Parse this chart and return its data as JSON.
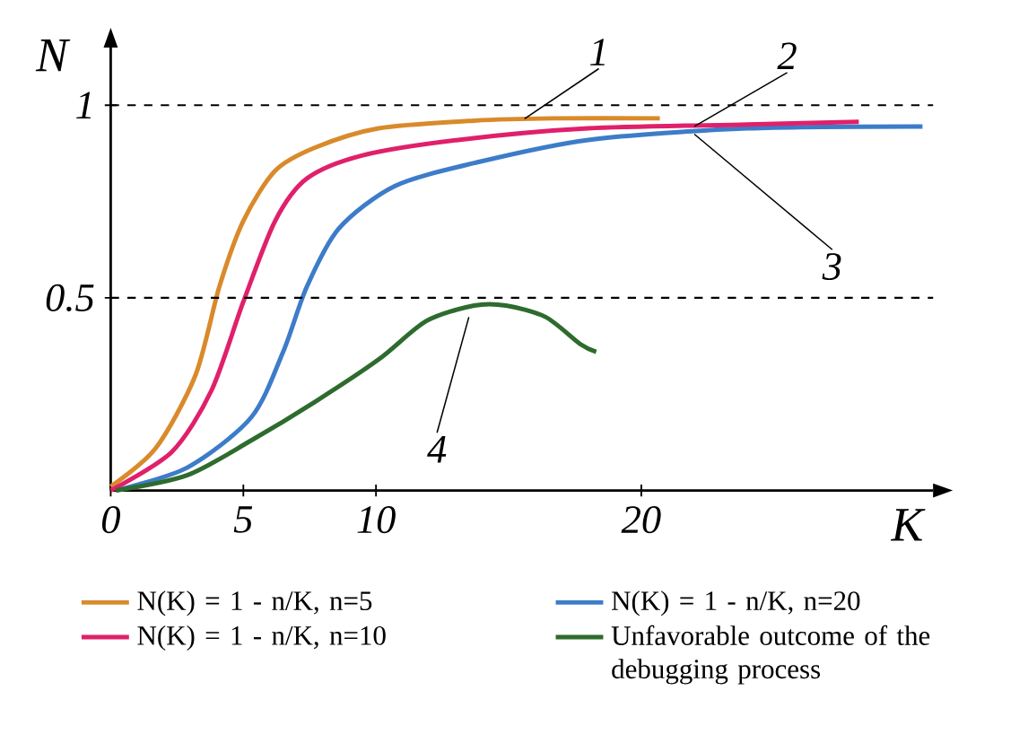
{
  "chart_data": {
    "type": "line",
    "xlabel": "K",
    "ylabel": "N",
    "xlim": [
      0,
      31
    ],
    "ylim": [
      0,
      1.15
    ],
    "xticks": [
      0,
      5,
      10,
      20
    ],
    "yticks": [
      0.5,
      1
    ],
    "ref_lines": [
      {
        "axis": "y",
        "value": 1,
        "line_style": "dashed",
        "color": "#000000"
      },
      {
        "axis": "y",
        "value": 0.5,
        "line_style": "dashed",
        "color": "#000000"
      }
    ],
    "legend": "bottom",
    "grid": false,
    "marker": "none",
    "series": [
      {
        "name": "N(K) = 1 - n/K, n=5",
        "color": "#d98a2b",
        "x": [
          0,
          1.7,
          3.2,
          4.1,
          5,
          6.2,
          7.7,
          10.1,
          13.7,
          16.7,
          20.7
        ],
        "values": [
          0.01,
          0.11,
          0.3,
          0.53,
          0.7,
          0.83,
          0.89,
          0.94,
          0.96,
          0.966,
          0.966
        ]
      },
      {
        "name": "N(K) = 1 - n/K, n=20",
        "color": "#3d7cc9",
        "x": [
          0.2,
          2.9,
          5.3,
          6.5,
          7.4,
          8.6,
          10.7,
          13.7,
          18,
          24,
          30.6
        ],
        "values": [
          0,
          0.06,
          0.19,
          0.36,
          0.53,
          0.68,
          0.79,
          0.85,
          0.91,
          0.94,
          0.945
        ]
      },
      {
        "name": "N(K) = 1 - n/K, n=10",
        "color": "#e0206a",
        "x": [
          0,
          2.3,
          3.8,
          5,
          6.2,
          7.4,
          9.5,
          13.1,
          18,
          24,
          28.2
        ],
        "values": [
          0,
          0.1,
          0.26,
          0.49,
          0.7,
          0.81,
          0.87,
          0.91,
          0.94,
          0.95,
          0.957
        ]
      },
      {
        "name": "Unfavorable outcome of the debugging process",
        "color": "#2e6b2e",
        "x": [
          0.2,
          2.9,
          5.3,
          7.7,
          10.1,
          11.9,
          13.7,
          14.9,
          16.4,
          17.7,
          18.3
        ],
        "values": [
          0,
          0.04,
          0.13,
          0.23,
          0.34,
          0.44,
          0.48,
          0.48,
          0.45,
          0.38,
          0.36
        ]
      }
    ],
    "annotations": [
      {
        "text": "1",
        "x": 15.6,
        "y": 0.965
      },
      {
        "text": "2",
        "x": 22,
        "y": 0.945
      },
      {
        "text": "3",
        "x": 22,
        "y": 0.925
      },
      {
        "text": "4",
        "x": 13.5,
        "y": 0.45
      }
    ]
  }
}
